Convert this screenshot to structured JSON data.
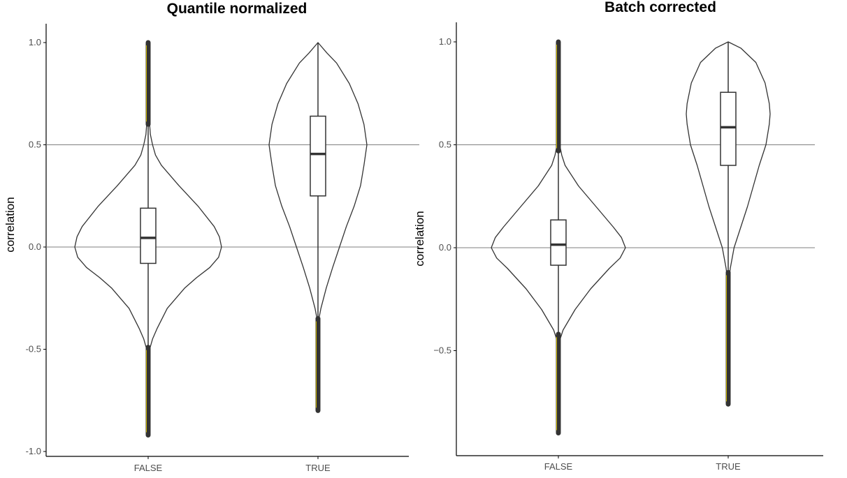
{
  "colors": {
    "outline": "#333333",
    "refline": "#7f7f7f",
    "outlier": "#333333",
    "outlier_highlight": "#c8b400",
    "axis": "#000000"
  },
  "chart_data": [
    {
      "type": "violin",
      "title": "Quantile normalized",
      "xlabel": "",
      "ylabel": "correlation",
      "categories": [
        "FALSE",
        "TRUE"
      ],
      "ylim": [
        -1.0,
        1.0
      ],
      "yticks": [
        1.0,
        0.5,
        0.0,
        -0.5,
        -1.0
      ],
      "ytick_labels": [
        "1.0",
        "0.5",
        "0.0",
        "-0.5",
        "-1.0"
      ],
      "hlines": [
        0.5,
        0.0
      ],
      "grid": false,
      "series": [
        {
          "category": "FALSE",
          "box": {
            "q1": -0.08,
            "median": 0.045,
            "q3": 0.19,
            "whisker_low": -0.49,
            "whisker_high": 0.6
          },
          "violin_profile": [
            [
              1.0,
              0.0
            ],
            [
              0.8,
              0.005
            ],
            [
              0.7,
              0.01
            ],
            [
              0.6,
              0.02
            ],
            [
              0.55,
              0.03
            ],
            [
              0.5,
              0.06
            ],
            [
              0.45,
              0.1
            ],
            [
              0.4,
              0.18
            ],
            [
              0.3,
              0.42
            ],
            [
              0.2,
              0.68
            ],
            [
              0.1,
              0.9
            ],
            [
              0.05,
              0.97
            ],
            [
              0.0,
              1.0
            ],
            [
              -0.05,
              0.96
            ],
            [
              -0.1,
              0.84
            ],
            [
              -0.15,
              0.66
            ],
            [
              -0.2,
              0.5
            ],
            [
              -0.3,
              0.26
            ],
            [
              -0.4,
              0.12
            ],
            [
              -0.45,
              0.06
            ],
            [
              -0.5,
              0.02
            ],
            [
              -0.6,
              0.01
            ],
            [
              -0.8,
              0.005
            ],
            [
              -0.92,
              0.0
            ]
          ],
          "outliers_high": [
            0.6,
            1.0
          ],
          "outliers_low": [
            -0.92,
            -0.49
          ]
        },
        {
          "category": "TRUE",
          "box": {
            "q1": 0.25,
            "median": 0.455,
            "q3": 0.64,
            "whisker_low": -0.35,
            "whisker_high": 1.0
          },
          "violin_profile": [
            [
              1.0,
              0.0
            ],
            [
              0.95,
              0.18
            ],
            [
              0.9,
              0.38
            ],
            [
              0.8,
              0.64
            ],
            [
              0.7,
              0.82
            ],
            [
              0.6,
              0.94
            ],
            [
              0.5,
              1.0
            ],
            [
              0.45,
              0.97
            ],
            [
              0.4,
              0.94
            ],
            [
              0.3,
              0.87
            ],
            [
              0.2,
              0.74
            ],
            [
              0.1,
              0.58
            ],
            [
              0.0,
              0.44
            ],
            [
              -0.1,
              0.3
            ],
            [
              -0.2,
              0.17
            ],
            [
              -0.3,
              0.06
            ],
            [
              -0.35,
              0.02
            ],
            [
              -0.5,
              0.01
            ],
            [
              -0.7,
              0.005
            ],
            [
              -0.8,
              0.0
            ]
          ],
          "outliers_high": [],
          "outliers_low": [
            -0.8,
            -0.35
          ]
        }
      ]
    },
    {
      "type": "violin",
      "title": "Batch corrected",
      "xlabel": "",
      "ylabel": "correlation",
      "categories": [
        "FALSE",
        "TRUE"
      ],
      "ylim": [
        -0.9,
        1.0
      ],
      "yticks": [
        1.0,
        0.5,
        0.0,
        -0.5
      ],
      "ytick_labels": [
        "1.0",
        "0.5",
        "0.0",
        "−0.5"
      ],
      "hlines": [
        0.5,
        0.0
      ],
      "grid": false,
      "series": [
        {
          "category": "FALSE",
          "box": {
            "q1": -0.085,
            "median": 0.015,
            "q3": 0.135,
            "whisker_low": -0.42,
            "whisker_high": 0.47
          },
          "violin_profile": [
            [
              1.0,
              0.0
            ],
            [
              0.8,
              0.005
            ],
            [
              0.6,
              0.01
            ],
            [
              0.5,
              0.02
            ],
            [
              0.45,
              0.05
            ],
            [
              0.4,
              0.1
            ],
            [
              0.3,
              0.3
            ],
            [
              0.2,
              0.56
            ],
            [
              0.1,
              0.82
            ],
            [
              0.05,
              0.94
            ],
            [
              0.0,
              1.0
            ],
            [
              -0.05,
              0.92
            ],
            [
              -0.1,
              0.76
            ],
            [
              -0.2,
              0.48
            ],
            [
              -0.3,
              0.25
            ],
            [
              -0.4,
              0.07
            ],
            [
              -0.45,
              0.02
            ],
            [
              -0.6,
              0.01
            ],
            [
              -0.8,
              0.005
            ],
            [
              -0.9,
              0.0
            ]
          ],
          "outliers_high": [
            0.47,
            1.0
          ],
          "outliers_low": [
            -0.9,
            -0.42
          ]
        },
        {
          "category": "TRUE",
          "box": {
            "q1": 0.4,
            "median": 0.585,
            "q3": 0.755,
            "whisker_low": -0.12,
            "whisker_high": 1.0
          },
          "violin_profile": [
            [
              1.0,
              0.0
            ],
            [
              0.97,
              0.3
            ],
            [
              0.9,
              0.66
            ],
            [
              0.8,
              0.88
            ],
            [
              0.7,
              0.98
            ],
            [
              0.65,
              1.0
            ],
            [
              0.6,
              0.98
            ],
            [
              0.5,
              0.9
            ],
            [
              0.4,
              0.74
            ],
            [
              0.3,
              0.6
            ],
            [
              0.2,
              0.46
            ],
            [
              0.1,
              0.3
            ],
            [
              0.0,
              0.14
            ],
            [
              -0.1,
              0.05
            ],
            [
              -0.15,
              0.02
            ],
            [
              -0.3,
              0.01
            ],
            [
              -0.5,
              0.01
            ],
            [
              -0.7,
              0.005
            ],
            [
              -0.76,
              0.0
            ]
          ],
          "outliers_high": [],
          "outliers_low": [
            -0.76,
            -0.12
          ]
        }
      ]
    }
  ]
}
